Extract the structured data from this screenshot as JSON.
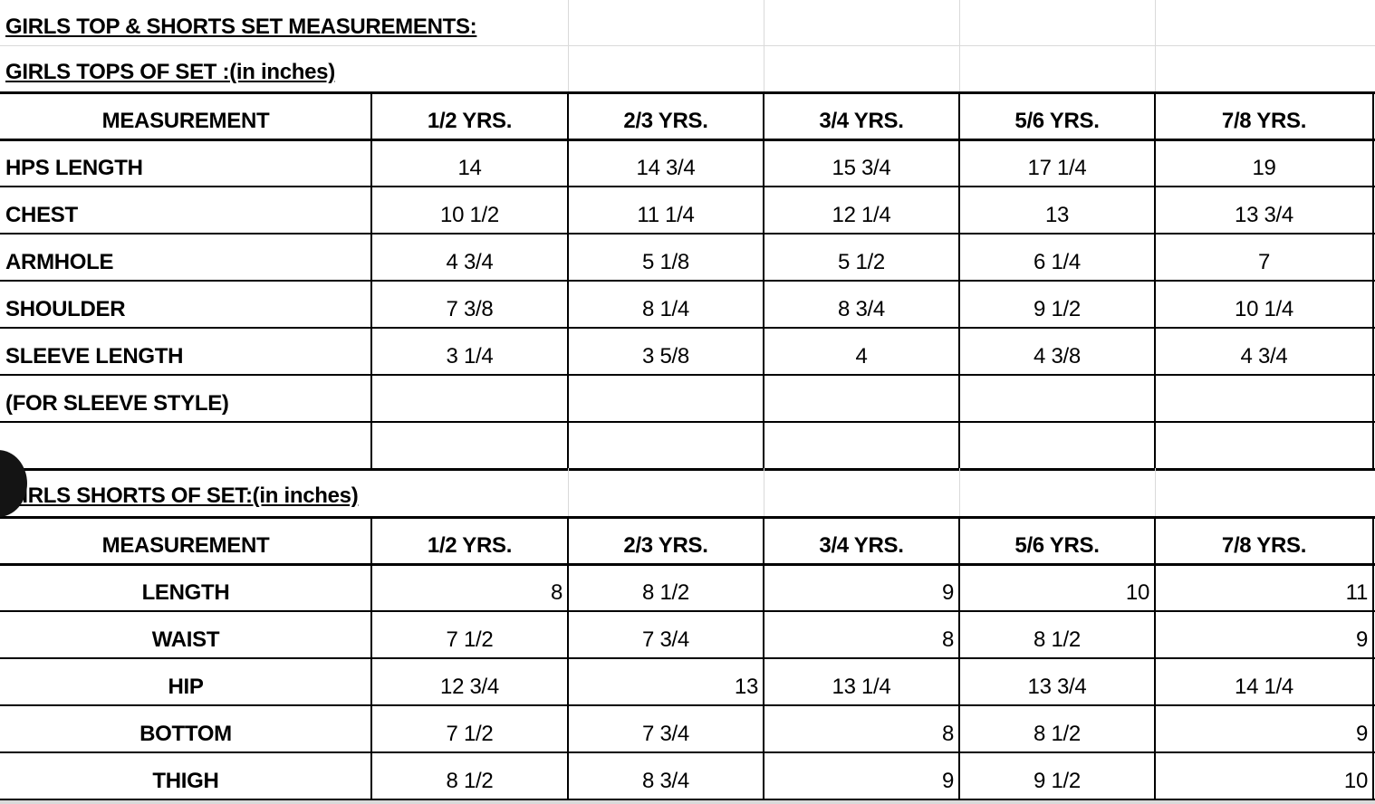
{
  "main_title": "GIRLS TOP & SHORTS SET MEASUREMENTS:",
  "tops": {
    "title": "GIRLS TOPS  OF SET :(in inches)",
    "headers": [
      "MEASUREMENT",
      "1/2 YRS.",
      "2/3 YRS.",
      "3/4 YRS.",
      "5/6 YRS.",
      "7/8 YRS."
    ],
    "rows": [
      [
        "HPS LENGTH",
        "14",
        "14 3/4",
        "15 3/4",
        "17 1/4",
        "19"
      ],
      [
        "CHEST",
        "10 1/2",
        "11 1/4",
        "12 1/4",
        "13",
        "13 3/4"
      ],
      [
        "ARMHOLE",
        "4 3/4",
        "5 1/8",
        "5 1/2",
        "6 1/4",
        "7"
      ],
      [
        "SHOULDER",
        "7 3/8",
        "8 1/4",
        "8 3/4",
        "9 1/2",
        "10 1/4"
      ],
      [
        "SLEEVE LENGTH",
        "3 1/4",
        "3 5/8",
        "4",
        "4 3/8",
        "4 3/4"
      ],
      [
        "(FOR SLEEVE STYLE)",
        "",
        "",
        "",
        "",
        ""
      ],
      [
        "",
        "",
        "",
        "",
        "",
        ""
      ]
    ]
  },
  "shorts": {
    "title": "GIRLS SHORTS OF SET:(in inches)",
    "headers": [
      "MEASUREMENT",
      "1/2 YRS.",
      "2/3 YRS.",
      "3/4 YRS.",
      "5/6 YRS.",
      "7/8 YRS."
    ],
    "rows": [
      [
        "LENGTH",
        "8",
        "8 1/2",
        "9",
        "10",
        "11"
      ],
      [
        "WAIST",
        "7 1/2",
        "7 3/4",
        "8",
        "8 1/2",
        "9"
      ],
      [
        "HIP",
        "12 3/4",
        "13",
        "13 1/4",
        "13 3/4",
        "14 1/4"
      ],
      [
        "BOTTOM",
        "7 1/2",
        "7 3/4",
        "8",
        "8 1/2",
        "9"
      ],
      [
        "THIGH",
        "8 1/2",
        "8 3/4",
        "9",
        "9 1/2",
        "10"
      ]
    ]
  }
}
